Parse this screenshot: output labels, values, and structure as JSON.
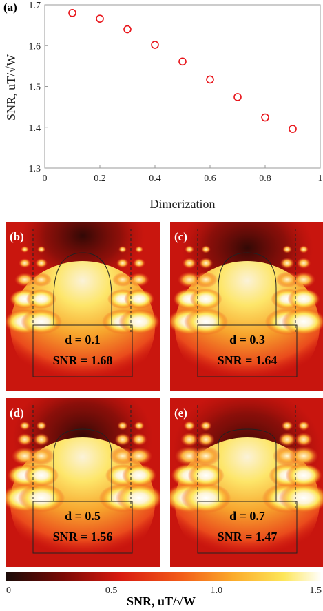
{
  "chart_data": [
    {
      "type": "scatter",
      "panel_label": "(a)",
      "x": [
        0.1,
        0.2,
        0.3,
        0.4,
        0.5,
        0.6,
        0.7,
        0.8,
        0.9
      ],
      "y": [
        1.68,
        1.666,
        1.64,
        1.602,
        1.561,
        1.517,
        1.474,
        1.424,
        1.396
      ],
      "xlabel": "Dimerization",
      "ylabel": "SNR, uT/√W",
      "xlim": [
        0,
        1
      ],
      "ylim": [
        1.3,
        1.7
      ],
      "xticks": [
        "0",
        "0.2",
        "0.4",
        "0.6",
        "0.8",
        "1"
      ],
      "yticks": [
        "1.3",
        "1.4",
        "1.5",
        "1.6",
        "1.7"
      ],
      "marker": "open-circle",
      "marker_color": "#e8141a",
      "grid": false
    },
    {
      "type": "heatmap",
      "panels": [
        {
          "label": "(b)",
          "d_text": "d = 0.1",
          "snr_text": "SNR = 1.68"
        },
        {
          "label": "(c)",
          "d_text": "d = 0.3",
          "snr_text": "SNR = 1.64"
        },
        {
          "label": "(d)",
          "d_text": "d = 0.5",
          "snr_text": "SNR = 1.56"
        },
        {
          "label": "(e)",
          "d_text": "d = 0.7",
          "snr_text": "SNR = 1.47"
        }
      ],
      "colorbar": {
        "ticks": [
          "0",
          "0.5",
          "1.0",
          "1.5"
        ],
        "range": [
          0,
          1.5
        ],
        "label": "SNR, uT/√W",
        "colors": [
          "#1a0b08",
          "#7a0a06",
          "#d81a10",
          "#f25a18",
          "#fbab2a",
          "#fde65a",
          "#ffffff"
        ]
      }
    }
  ]
}
